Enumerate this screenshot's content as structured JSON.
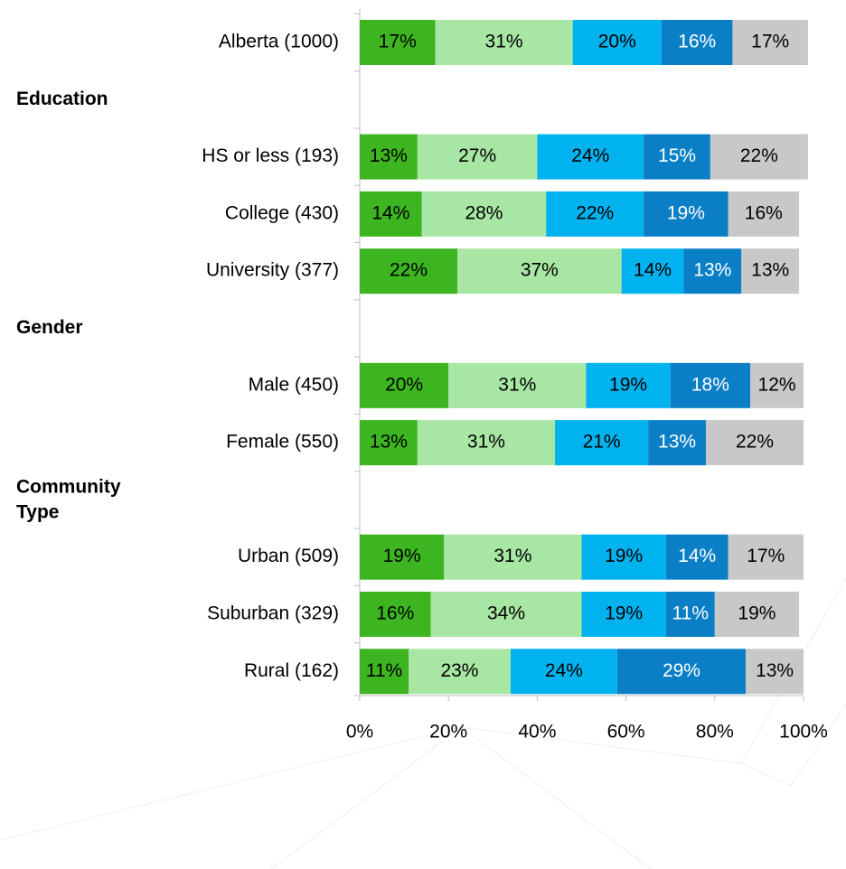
{
  "chart_data": {
    "type": "stacked_bar_horizontal",
    "categories": [
      "Alberta (1000)",
      "Education",
      "HS or less (193)",
      "College (430)",
      "University (377)",
      "Gender",
      "Male (450)",
      "Female (550)",
      "Community Type",
      "Urban (509)",
      "Suburban (329)",
      "Rural (162)"
    ],
    "series": [
      {
        "color": "#3cb521",
        "label_color": "#000000",
        "values": [
          17,
          null,
          13,
          14,
          22,
          null,
          20,
          13,
          null,
          19,
          16,
          11
        ],
        "value_labels": [
          "17%",
          null,
          "13%",
          "14%",
          "22%",
          null,
          "20%",
          "13%",
          null,
          "19%",
          "16%",
          "11%"
        ]
      },
      {
        "color": "#a8e6a3",
        "label_color": "#000000",
        "values": [
          31,
          null,
          27,
          28,
          37,
          null,
          31,
          31,
          null,
          31,
          34,
          23
        ],
        "value_labels": [
          "31%",
          null,
          "27%",
          "28%",
          "37%",
          null,
          "31%",
          "31%",
          null,
          "31%",
          "34%",
          "23%"
        ]
      },
      {
        "color": "#00b2ee",
        "label_color": "#000000",
        "values": [
          20,
          null,
          24,
          22,
          14,
          null,
          19,
          21,
          null,
          19,
          19,
          24
        ],
        "value_labels": [
          "20%",
          null,
          "24%",
          "22%",
          "14%",
          null,
          "19%",
          "21%",
          null,
          "19%",
          "19%",
          "24%"
        ]
      },
      {
        "color": "#0a7fc6",
        "label_color": "#ffffff",
        "values": [
          16,
          null,
          15,
          19,
          13,
          null,
          18,
          13,
          null,
          14,
          11,
          29
        ],
        "value_labels": [
          "16%",
          null,
          "15%",
          "19%",
          "13%",
          null,
          "18%",
          "13%",
          null,
          "14%",
          "11%",
          "29%"
        ]
      },
      {
        "color": "#c8c8c8",
        "label_color": "#000000",
        "values": [
          17,
          null,
          22,
          16,
          13,
          null,
          12,
          22,
          null,
          17,
          19,
          13
        ],
        "value_labels": [
          "17%",
          null,
          "22%",
          "16%",
          "13%",
          null,
          "12%",
          "22%",
          null,
          "17%",
          "19%",
          "13%"
        ]
      }
    ],
    "xlim": [
      0,
      100
    ],
    "xticks": [
      {
        "value": 0,
        "label": "0%"
      },
      {
        "value": 20,
        "label": "20%"
      },
      {
        "value": 40,
        "label": "40%"
      },
      {
        "value": 60,
        "label": "60%"
      },
      {
        "value": 80,
        "label": "80%"
      },
      {
        "value": 100,
        "label": "100%"
      }
    ]
  }
}
